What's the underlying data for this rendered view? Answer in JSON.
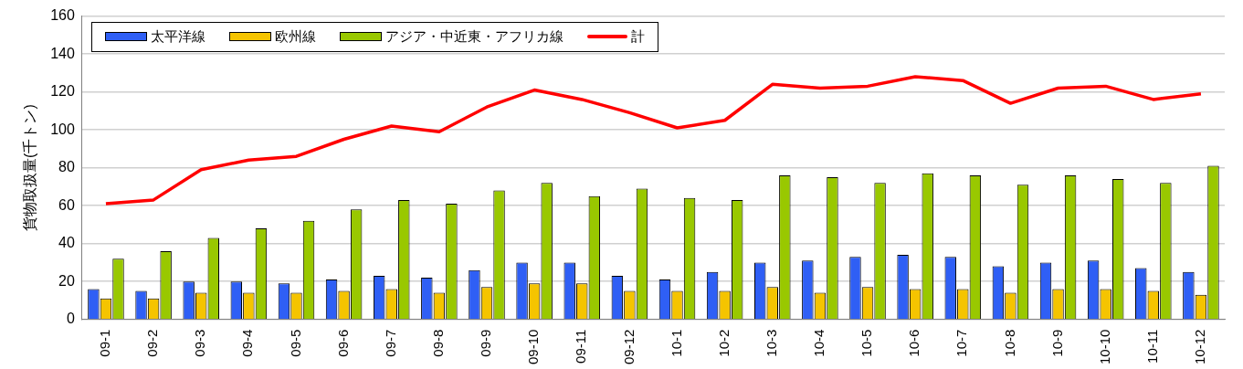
{
  "chart_data": {
    "type": "bar",
    "ylabel": "貨物取扱量(千トン)",
    "categories": [
      "09-1",
      "09-2",
      "09-3",
      "09-4",
      "09-5",
      "09-6",
      "09-7",
      "09-8",
      "09-9",
      "09-10",
      "09-11",
      "09-12",
      "10-1",
      "10-2",
      "10-3",
      "10-4",
      "10-5",
      "10-6",
      "10-7",
      "10-8",
      "10-9",
      "10-10",
      "10-11",
      "10-12"
    ],
    "series": [
      {
        "name": "太平洋線",
        "color": "#2f5ff5",
        "values": [
          16,
          15,
          20,
          20,
          19,
          21,
          23,
          22,
          26,
          30,
          30,
          23,
          21,
          25,
          30,
          31,
          33,
          34,
          33,
          28,
          30,
          31,
          27,
          25
        ]
      },
      {
        "name": "欧州線",
        "color": "#f5c400",
        "values": [
          11,
          11,
          14,
          14,
          14,
          15,
          16,
          14,
          17,
          19,
          19,
          15,
          15,
          15,
          17,
          14,
          17,
          16,
          16,
          14,
          16,
          16,
          15,
          13
        ]
      },
      {
        "name": "アジア・中近東・アフリカ線",
        "color": "#99c800",
        "values": [
          32,
          36,
          43,
          48,
          52,
          58,
          63,
          61,
          68,
          72,
          65,
          69,
          64,
          63,
          76,
          75,
          72,
          77,
          76,
          71,
          76,
          74,
          72,
          81
        ]
      },
      {
        "name": "計",
        "type": "line",
        "color": "#ff0000",
        "values": [
          61,
          63,
          79,
          84,
          86,
          95,
          102,
          99,
          112,
          121,
          116,
          109,
          101,
          105,
          124,
          122,
          123,
          128,
          126,
          114,
          122,
          123,
          116,
          119
        ]
      }
    ],
    "ylim": [
      0,
      160
    ],
    "yticks": [
      0,
      20,
      40,
      60,
      80,
      100,
      120,
      140,
      160
    ],
    "grid": "y",
    "legend": "top left",
    "marker": "none"
  }
}
